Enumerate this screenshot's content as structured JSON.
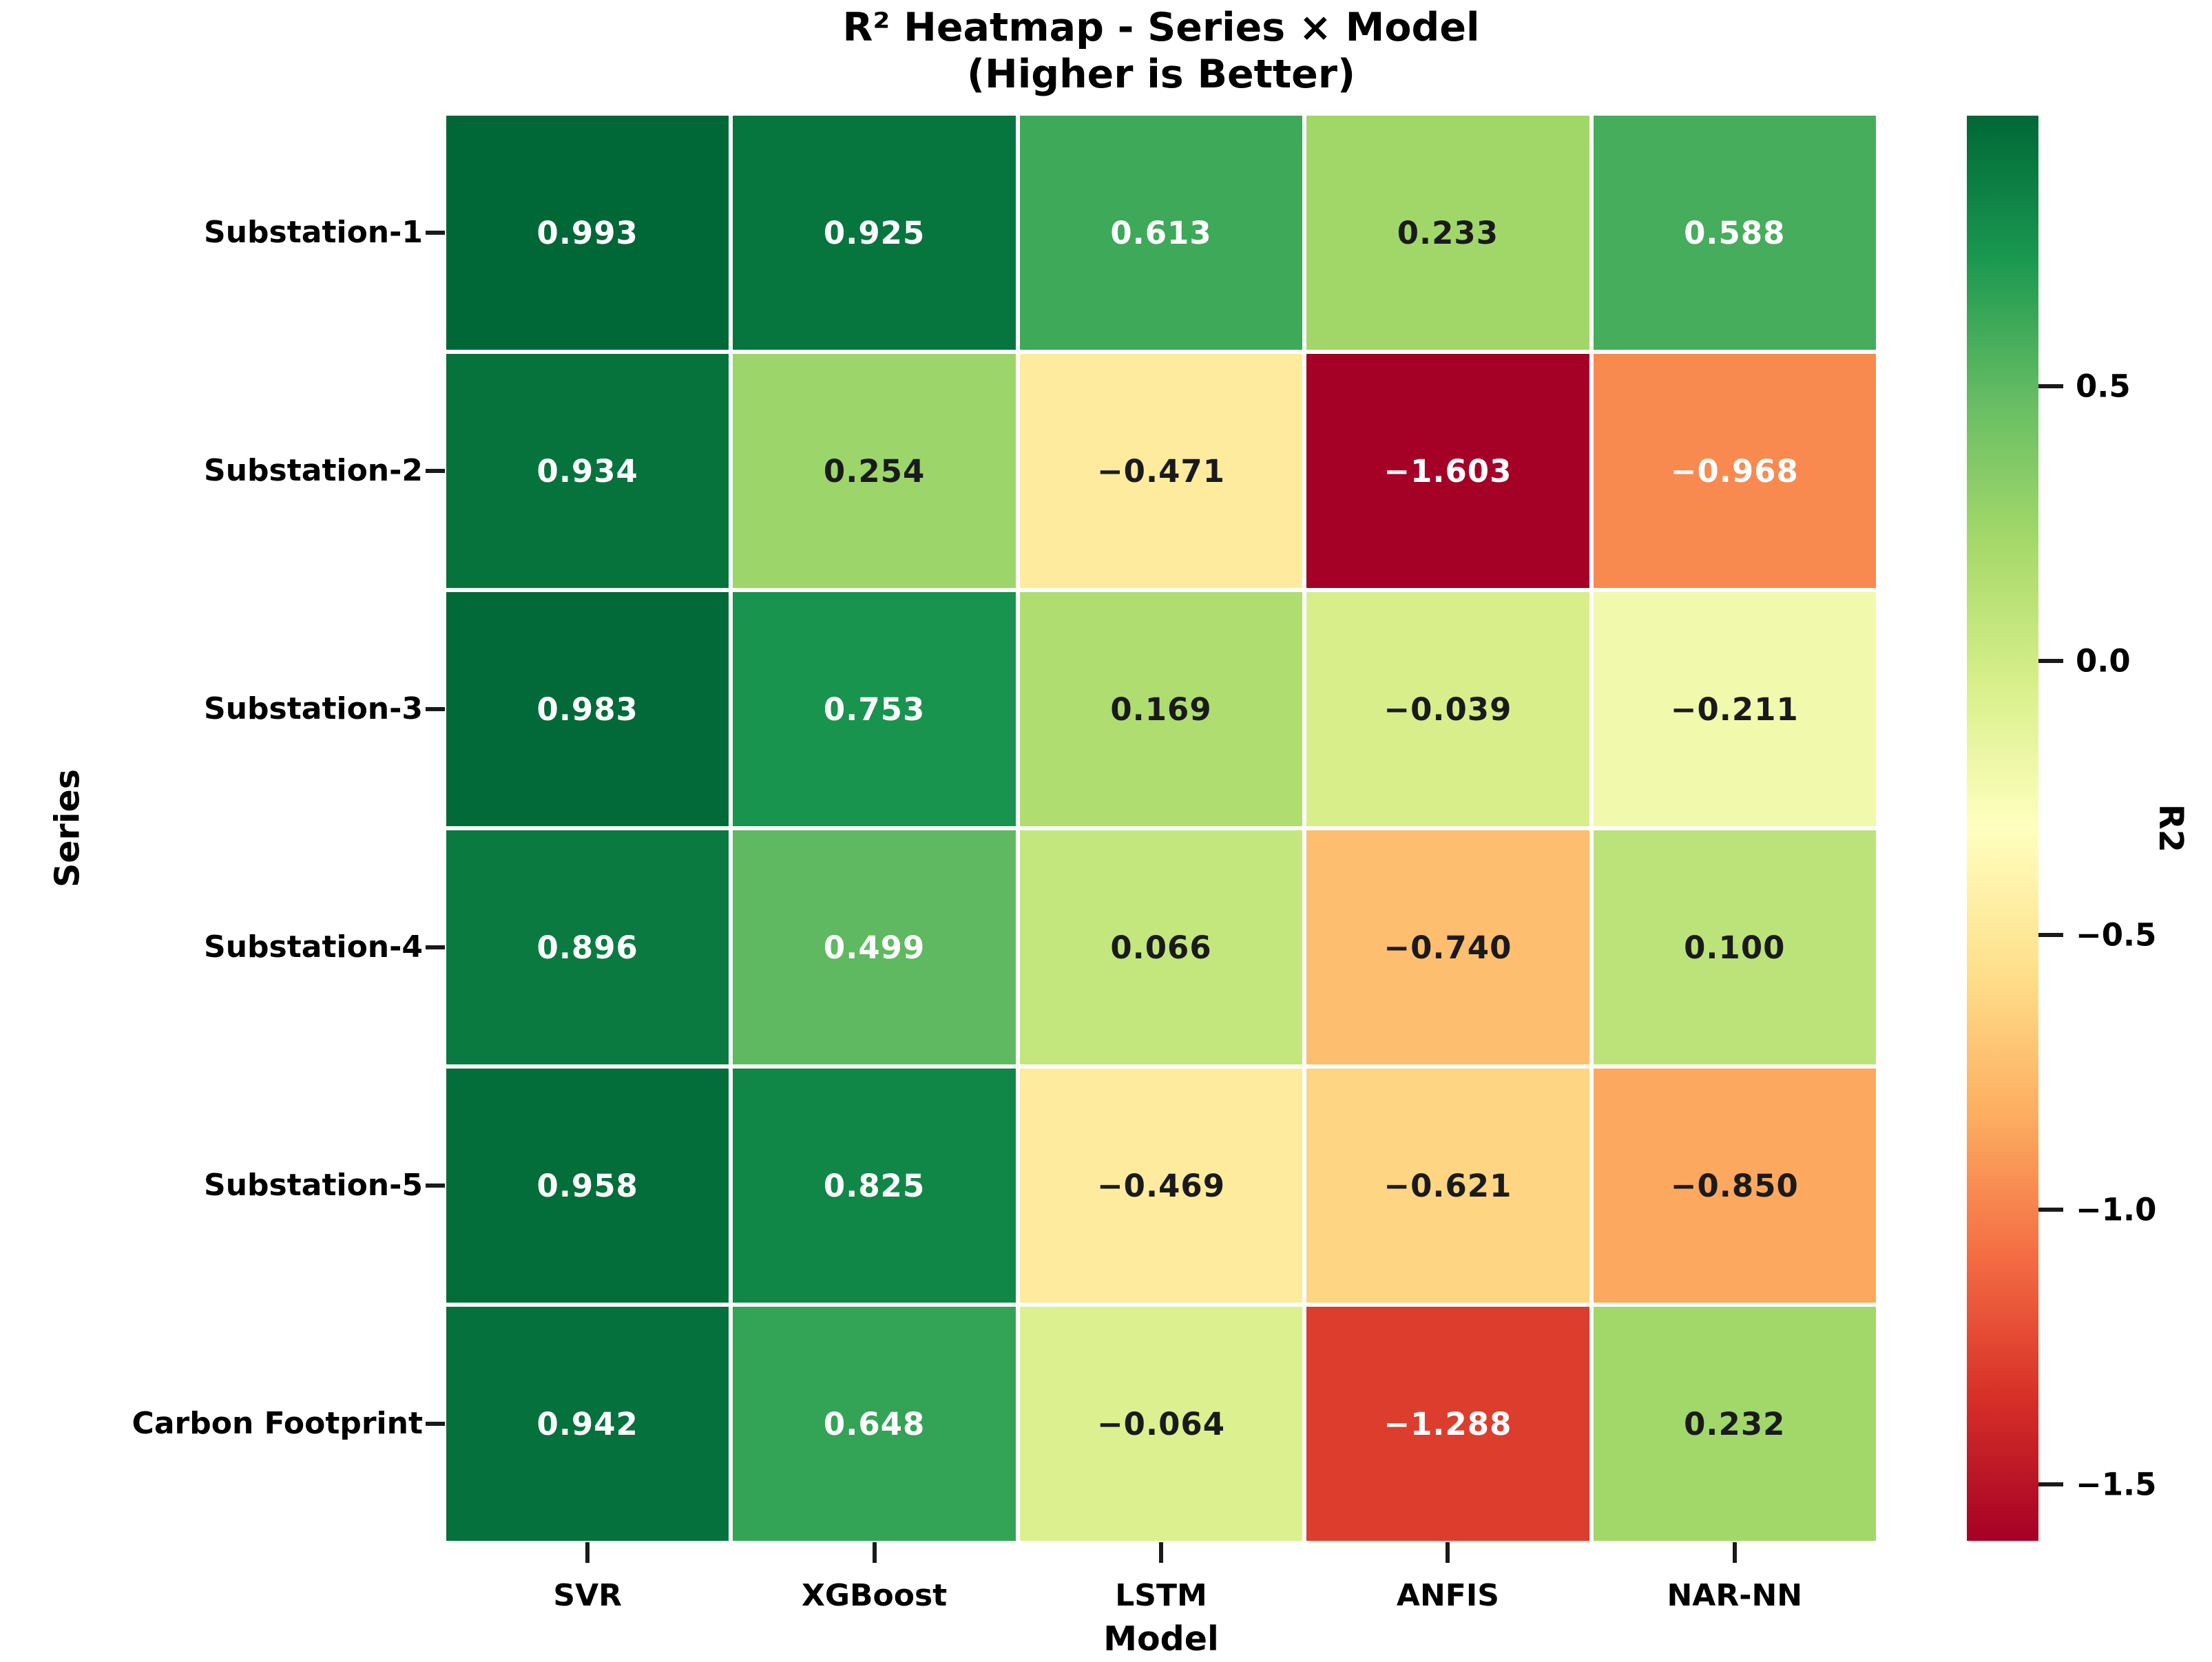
{
  "title": {
    "line1": "R² Heatmap - Series × Model",
    "line2": "(Higher is Better)"
  },
  "chart_data": {
    "type": "heatmap",
    "xlabel": "Model",
    "ylabel": "Series",
    "categories_x": [
      "SVR",
      "XGBoost",
      "LSTM",
      "ANFIS",
      "NAR-NN"
    ],
    "categories_y": [
      "Substation-1",
      "Substation-2",
      "Substation-3",
      "Substation-4",
      "Substation-5",
      "Carbon Footprint"
    ],
    "values": [
      [
        0.993,
        0.925,
        0.613,
        0.233,
        0.588
      ],
      [
        0.934,
        0.254,
        -0.471,
        -1.603,
        -0.968
      ],
      [
        0.983,
        0.753,
        0.169,
        -0.039,
        -0.211
      ],
      [
        0.896,
        0.499,
        0.066,
        -0.74,
        0.1
      ],
      [
        0.958,
        0.825,
        -0.469,
        -0.621,
        -0.85
      ],
      [
        0.942,
        0.648,
        -0.064,
        -1.288,
        0.232
      ]
    ],
    "cell_labels": [
      [
        "0.993",
        "0.925",
        "0.613",
        "0.233",
        "0.588"
      ],
      [
        "0.934",
        "0.254",
        "−0.471",
        "−1.603",
        "−0.968"
      ],
      [
        "0.983",
        "0.753",
        "0.169",
        "−0.039",
        "−0.211"
      ],
      [
        "0.896",
        "0.499",
        "0.066",
        "−0.740",
        "0.100"
      ],
      [
        "0.958",
        "0.825",
        "−0.469",
        "−0.621",
        "−0.850"
      ],
      [
        "0.942",
        "0.648",
        "−0.064",
        "−1.288",
        "0.232"
      ]
    ],
    "colorbar": {
      "label": "R2",
      "vmin": -1.603,
      "vmax": 0.993,
      "ticks": [
        {
          "value": 0.5,
          "label": "0.5"
        },
        {
          "value": 0.0,
          "label": "0.0"
        },
        {
          "value": -0.5,
          "label": "−0.5"
        },
        {
          "value": -1.0,
          "label": "−1.0"
        },
        {
          "value": -1.5,
          "label": "−1.5"
        }
      ]
    },
    "colormap": {
      "name": "RdYlGn",
      "anchors": [
        "#a50026",
        "#d73027",
        "#f46d43",
        "#fdae61",
        "#fee08b",
        "#ffffbf",
        "#d9ef8b",
        "#a6d96a",
        "#66bd63",
        "#1a9850",
        "#006837"
      ]
    },
    "grid_line_color": "#ffffff",
    "text_colors": {
      "light": "#ffffff",
      "dark": "#1a1a1a"
    },
    "tick_color": "#1a1a1a"
  }
}
